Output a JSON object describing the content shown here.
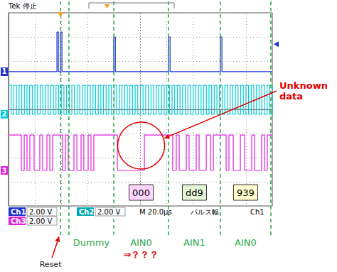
{
  "chart_data": {
    "type": "line",
    "header": "Tek 停止",
    "xlim": [
      0,
      200
    ],
    "ylim": [
      -4,
      4
    ],
    "xticks": [
      0,
      20,
      40,
      60,
      80,
      100,
      120,
      140,
      160,
      180,
      200
    ],
    "yticks": [
      -4,
      -3,
      -2,
      -1,
      0,
      1,
      2,
      3,
      4
    ],
    "grid": true,
    "tick_labels": false,
    "series": [
      {
        "name": "1",
        "color": "#1c2fcf",
        "line_style": "step",
        "x": [
          0,
          36.7,
          37.8,
          39.4,
          40.5,
          79.8,
          81.0,
          121.3,
          122.5,
          160.6,
          161.8,
          200
        ],
        "values": [
          1.56,
          3.2,
          1.56,
          3.2,
          1.56,
          3.0,
          1.56,
          3.0,
          1.56,
          3.0,
          1.56,
          1.56
        ]
      },
      {
        "name": "2",
        "color": "#00cdd8",
        "line_style": "step",
        "x": [
          0,
          2,
          4,
          6,
          8,
          10,
          12,
          14,
          16,
          18,
          20,
          22,
          24,
          26,
          28,
          30,
          32,
          34,
          36,
          38,
          40,
          42,
          44,
          46,
          48,
          50,
          52,
          54,
          56,
          58,
          60,
          62,
          64,
          66,
          68,
          70,
          72,
          74,
          76,
          78,
          80,
          82,
          84,
          86,
          88,
          90,
          92,
          94,
          96,
          98,
          100,
          102,
          104,
          106,
          108,
          110,
          112,
          114,
          116,
          118,
          120,
          122,
          124,
          126,
          128,
          130,
          132,
          134,
          136,
          138,
          140,
          142,
          144,
          146,
          148,
          150,
          152,
          154,
          156,
          158,
          160,
          162,
          164,
          166,
          168,
          170,
          172,
          174,
          176,
          178,
          180,
          182,
          184,
          186,
          188,
          190,
          192,
          194,
          196,
          198,
          200
        ],
        "values": [
          1,
          -0.2,
          1,
          -0.2,
          1,
          -0.2,
          1,
          -0.2,
          1,
          -0.2,
          1,
          -0.2,
          1,
          -0.2,
          1,
          -0.2,
          1,
          -0.2,
          1,
          -0.2,
          1,
          -0.2,
          1,
          -0.2,
          1,
          -0.2,
          1,
          -0.2,
          1,
          -0.2,
          1,
          -0.2,
          1,
          -0.2,
          1,
          -0.2,
          1,
          -0.2,
          1,
          -0.2,
          1,
          -0.2,
          1,
          -0.2,
          1,
          -0.2,
          1,
          -0.2,
          1,
          -0.2,
          1,
          -0.2,
          1,
          -0.2,
          1,
          -0.2,
          1,
          -0.2,
          1,
          -0.2,
          1,
          -0.2,
          1,
          -0.2,
          1,
          -0.2,
          1,
          -0.2,
          1,
          -0.2,
          1,
          -0.2,
          1,
          -0.2,
          1,
          -0.2,
          1,
          -0.2,
          1,
          -0.2,
          1,
          -0.2,
          1,
          -0.2,
          1,
          -0.2,
          1,
          -0.2,
          1,
          -0.2,
          1,
          -0.2,
          1,
          -0.2,
          1,
          -0.2,
          1,
          -0.2,
          1,
          -0.2,
          1
        ]
      },
      {
        "name": "3",
        "color": "#e020e0",
        "line_style": "step",
        "x": [
          0,
          9.7,
          11.9,
          14.0,
          16.2,
          19.4,
          23.7,
          25.9,
          29.1,
          31.3,
          33.4,
          41.0,
          43.1,
          45.3,
          49.6,
          51.8,
          55.0,
          57.1,
          60.4,
          62.5,
          64.7,
          82.5,
          103.0,
          124.5,
          127.2,
          129.4,
          134.8,
          136.9,
          142.3,
          144.5,
          149.9,
          153.1,
          155.3,
          165.0,
          167.1,
          170.4,
          175.8,
          179.0,
          184.4,
          186.5,
          191.9,
          194.1,
          196.2,
          200
        ],
        "values": [
          -1.06,
          -2.53,
          -1.06,
          -2.53,
          -1.06,
          -2.53,
          -1.06,
          -2.53,
          -1.06,
          -2.53,
          -1.06,
          -2.53,
          -1.06,
          -2.53,
          -1.06,
          -2.53,
          -1.06,
          -2.53,
          -1.06,
          -2.53,
          -1.06,
          -2.53,
          -1.06,
          -2.53,
          -1.06,
          -2.53,
          -1.06,
          -2.53,
          -1.06,
          -2.53,
          -1.06,
          -2.53,
          -1.06,
          -2.53,
          -1.06,
          -2.53,
          -1.06,
          -2.53,
          -1.06,
          -2.53,
          -1.06,
          -2.53,
          -1.06,
          -1.06
        ]
      }
    ],
    "markers": [
      39.4,
      45.8,
      79.8,
      121.3,
      160.6,
      198.9
    ],
    "marker_label": "Reset",
    "segments": [
      "Dummy",
      "AIN0",
      "AIN1",
      "AIN0"
    ],
    "question": "⇒？？？",
    "value_boxes": [
      "000",
      "dd9",
      "939"
    ],
    "annotation": "Unknown data",
    "readout": {
      "channels": [
        {
          "name": "Ch1",
          "scale": "2.00 V"
        },
        {
          "name": "Ch2",
          "scale": "2.00 V"
        },
        {
          "name": "Ch3",
          "scale": "2.00 V"
        }
      ],
      "timebase": "M 20.0µs",
      "trigger": "パルス幅",
      "trigger_source": "Ch1"
    }
  }
}
